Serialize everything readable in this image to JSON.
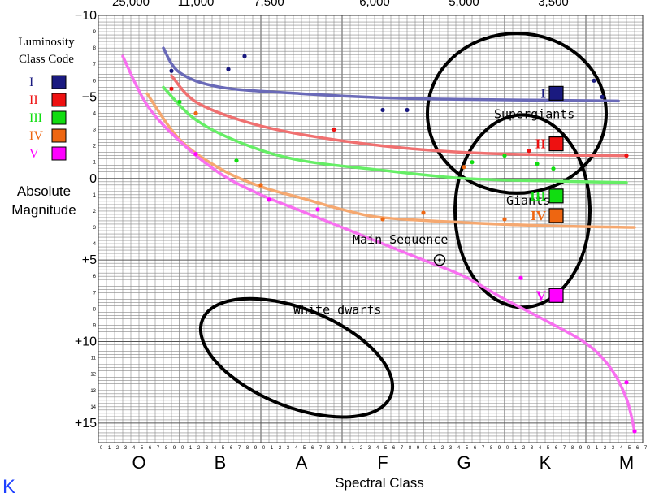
{
  "chart_data": {
    "type": "scatter",
    "title": "",
    "xlabel": "Spectral Class",
    "ylabel_lines": [
      "Absolute",
      "Magnitude"
    ],
    "x_range": [
      0,
      67
    ],
    "y_range": [
      -10,
      16.2
    ],
    "y_inverted": true,
    "grid": "on",
    "temperature_ticks": [
      {
        "x": 4,
        "label": "25,000"
      },
      {
        "x": 12,
        "label": "11,000"
      },
      {
        "x": 21,
        "label": "7,500"
      },
      {
        "x": 34,
        "label": "6,000"
      },
      {
        "x": 45,
        "label": "5,000"
      },
      {
        "x": 56,
        "label": "3,500"
      }
    ],
    "major_y_labels": [
      {
        "y": -10,
        "label": "−10"
      },
      {
        "y": -5,
        "label": "−5"
      },
      {
        "y": 0,
        "label": "0"
      },
      {
        "y": 5,
        "label": "+5"
      },
      {
        "y": 10,
        "label": "+10"
      },
      {
        "y": 15,
        "label": "+15"
      }
    ],
    "minor_y_values": [
      -9,
      -8,
      -7,
      -6,
      -4,
      -3,
      -2,
      -1,
      1,
      2,
      3,
      4,
      6,
      7,
      8,
      9,
      11,
      12,
      13,
      14
    ],
    "spectral_classes": [
      {
        "letter": "O",
        "x": 5
      },
      {
        "letter": "B",
        "x": 15
      },
      {
        "letter": "A",
        "x": 25
      },
      {
        "letter": "F",
        "x": 35
      },
      {
        "letter": "G",
        "x": 45
      },
      {
        "letter": "K",
        "x": 55
      },
      {
        "letter": "M",
        "x": 65
      }
    ],
    "subclass_digits": [
      "0",
      "1",
      "2",
      "3",
      "4",
      "5",
      "6",
      "7",
      "8",
      "9"
    ],
    "legend_title_lines": [
      "Luminosity",
      "Class Code"
    ],
    "legend": [
      {
        "code": "I",
        "color": "#1a1a80"
      },
      {
        "code": "II",
        "color": "#ee1111"
      },
      {
        "code": "III",
        "color": "#11dd11"
      },
      {
        "code": "IV",
        "color": "#ee6611"
      },
      {
        "code": "V",
        "color": "#ff00ff"
      }
    ],
    "series": [
      {
        "code": "I",
        "color": "#6a6ab8",
        "curve": [
          [
            8,
            -8
          ],
          [
            10,
            -6.5
          ],
          [
            15,
            -5.6
          ],
          [
            25,
            -5.2
          ],
          [
            35,
            -4.95
          ],
          [
            45,
            -4.85
          ],
          [
            55,
            -4.8
          ],
          [
            64,
            -4.75
          ]
        ]
      },
      {
        "code": "II",
        "color": "#f07070",
        "curve": [
          [
            9,
            -6.3
          ],
          [
            12,
            -4.7
          ],
          [
            18,
            -3.5
          ],
          [
            25,
            -2.7
          ],
          [
            35,
            -2
          ],
          [
            45,
            -1.6
          ],
          [
            55,
            -1.45
          ],
          [
            65,
            -1.4
          ]
        ]
      },
      {
        "code": "III",
        "color": "#66ee66",
        "curve": [
          [
            8,
            -5.6
          ],
          [
            12,
            -3.6
          ],
          [
            18,
            -2.1
          ],
          [
            25,
            -1.1
          ],
          [
            35,
            -0.5
          ],
          [
            45,
            0
          ],
          [
            55,
            0.15
          ],
          [
            65,
            0.25
          ]
        ]
      },
      {
        "code": "IV",
        "color": "#f5a870",
        "curve": [
          [
            6,
            -5.2
          ],
          [
            10,
            -2.4
          ],
          [
            15,
            -0.6
          ],
          [
            20,
            0.5
          ],
          [
            25,
            1.2
          ],
          [
            30,
            1.9
          ],
          [
            35,
            2.4
          ],
          [
            45,
            2.7
          ],
          [
            55,
            2.9
          ],
          [
            66,
            3
          ]
        ]
      },
      {
        "code": "V",
        "color": "#f870f0",
        "curve": [
          [
            3,
            -7.5
          ],
          [
            6,
            -4.5
          ],
          [
            10,
            -2.3
          ],
          [
            15,
            -0.3
          ],
          [
            20,
            1
          ],
          [
            25,
            2
          ],
          [
            30,
            3
          ],
          [
            35,
            4
          ],
          [
            40,
            5
          ],
          [
            45,
            6
          ],
          [
            50,
            7.4
          ],
          [
            55,
            8.7
          ],
          [
            60,
            10.1
          ],
          [
            63,
            11.6
          ],
          [
            65,
            13.5
          ],
          [
            66,
            15.5
          ]
        ]
      }
    ],
    "points": [
      {
        "code": "I",
        "color": "#1a1a80",
        "x": 9,
        "y": -6.6
      },
      {
        "code": "I",
        "color": "#1a1a80",
        "x": 16,
        "y": -6.7
      },
      {
        "code": "I",
        "color": "#1a1a80",
        "x": 18,
        "y": -7.5
      },
      {
        "code": "I",
        "color": "#1a1a80",
        "x": 35,
        "y": -4.2
      },
      {
        "code": "I",
        "color": "#1a1a80",
        "x": 38,
        "y": -4.2
      },
      {
        "code": "I",
        "color": "#1a1a80",
        "x": 61,
        "y": -6
      },
      {
        "code": "I",
        "color": "#1a1a80",
        "x": 62,
        "y": -5
      },
      {
        "code": "II",
        "color": "#ee1111",
        "x": 9,
        "y": -5.5
      },
      {
        "code": "II",
        "color": "#ee1111",
        "x": 29,
        "y": -3
      },
      {
        "code": "II",
        "color": "#ee1111",
        "x": 53,
        "y": -1.7
      },
      {
        "code": "II",
        "color": "#ee1111",
        "x": 65,
        "y": -1.4
      },
      {
        "code": "III",
        "color": "#11dd11",
        "x": 10,
        "y": -4.7
      },
      {
        "code": "III",
        "color": "#11dd11",
        "x": 17,
        "y": -1.1
      },
      {
        "code": "III",
        "color": "#11dd11",
        "x": 46,
        "y": -1
      },
      {
        "code": "III",
        "color": "#11dd11",
        "x": 50,
        "y": -1.4
      },
      {
        "code": "III",
        "color": "#11dd11",
        "x": 54,
        "y": -0.9
      },
      {
        "code": "III",
        "color": "#11dd11",
        "x": 56,
        "y": -0.6
      },
      {
        "code": "IV",
        "color": "#ee6611",
        "x": 12,
        "y": -4
      },
      {
        "code": "IV",
        "color": "#ee6611",
        "x": 20,
        "y": 0.4
      },
      {
        "code": "IV",
        "color": "#ee6611",
        "x": 35,
        "y": 2.5
      },
      {
        "code": "IV",
        "color": "#ee6611",
        "x": 40,
        "y": 2.1
      },
      {
        "code": "IV",
        "color": "#ee6611",
        "x": 45,
        "y": -0.7
      },
      {
        "code": "IV",
        "color": "#ee6611",
        "x": 50,
        "y": 2.5
      },
      {
        "code": "V",
        "color": "#ff00ff",
        "x": 12,
        "y": -1.5
      },
      {
        "code": "V",
        "color": "#ff00ff",
        "x": 21,
        "y": 1.3
      },
      {
        "code": "V",
        "color": "#ff00ff",
        "x": 27,
        "y": 1.9
      },
      {
        "code": "V",
        "color": "#ff00ff",
        "x": 52,
        "y": 6.1
      },
      {
        "code": "V",
        "color": "#ff00ff",
        "x": 65,
        "y": 12.5
      },
      {
        "code": "V",
        "color": "#ff00ff",
        "x": 66,
        "y": 15.5
      }
    ],
    "sun": {
      "x": 42,
      "y": 5
    },
    "annotations": [
      {
        "text": "Supergiants",
        "x": 48.7,
        "y": -3.7
      },
      {
        "text": "Giants",
        "x": 50.2,
        "y": 1.6
      },
      {
        "text": "Main Sequence",
        "x": 31.3,
        "y": 4
      },
      {
        "text": "White dwarfs",
        "x": 24,
        "y": 8.3
      }
    ],
    "region_ellipses": [
      {
        "name": "supergiants-region",
        "cx": 51.5,
        "cy": -4,
        "rx": 11,
        "ry": 4.9,
        "rotate": 0
      },
      {
        "name": "giants-region",
        "cx": 52.2,
        "cy": 2,
        "rx": 8.3,
        "ry": 5.9,
        "rotate": 0
      },
      {
        "name": "white-dwarfs-region",
        "cx": 24.4,
        "cy": 11,
        "rx": 12.5,
        "ry": 3,
        "rotate": 22
      }
    ],
    "region_code_labels": [
      {
        "code": "I",
        "x": 54,
        "y": -5.2
      },
      {
        "code": "II",
        "x": 54,
        "y": -2.1
      },
      {
        "code": "III",
        "x": 54,
        "y": 1.1
      },
      {
        "code": "IV",
        "x": 54,
        "y": 2.3
      },
      {
        "code": "V",
        "x": 54,
        "y": 7.2
      }
    ],
    "corner_text": "K"
  }
}
